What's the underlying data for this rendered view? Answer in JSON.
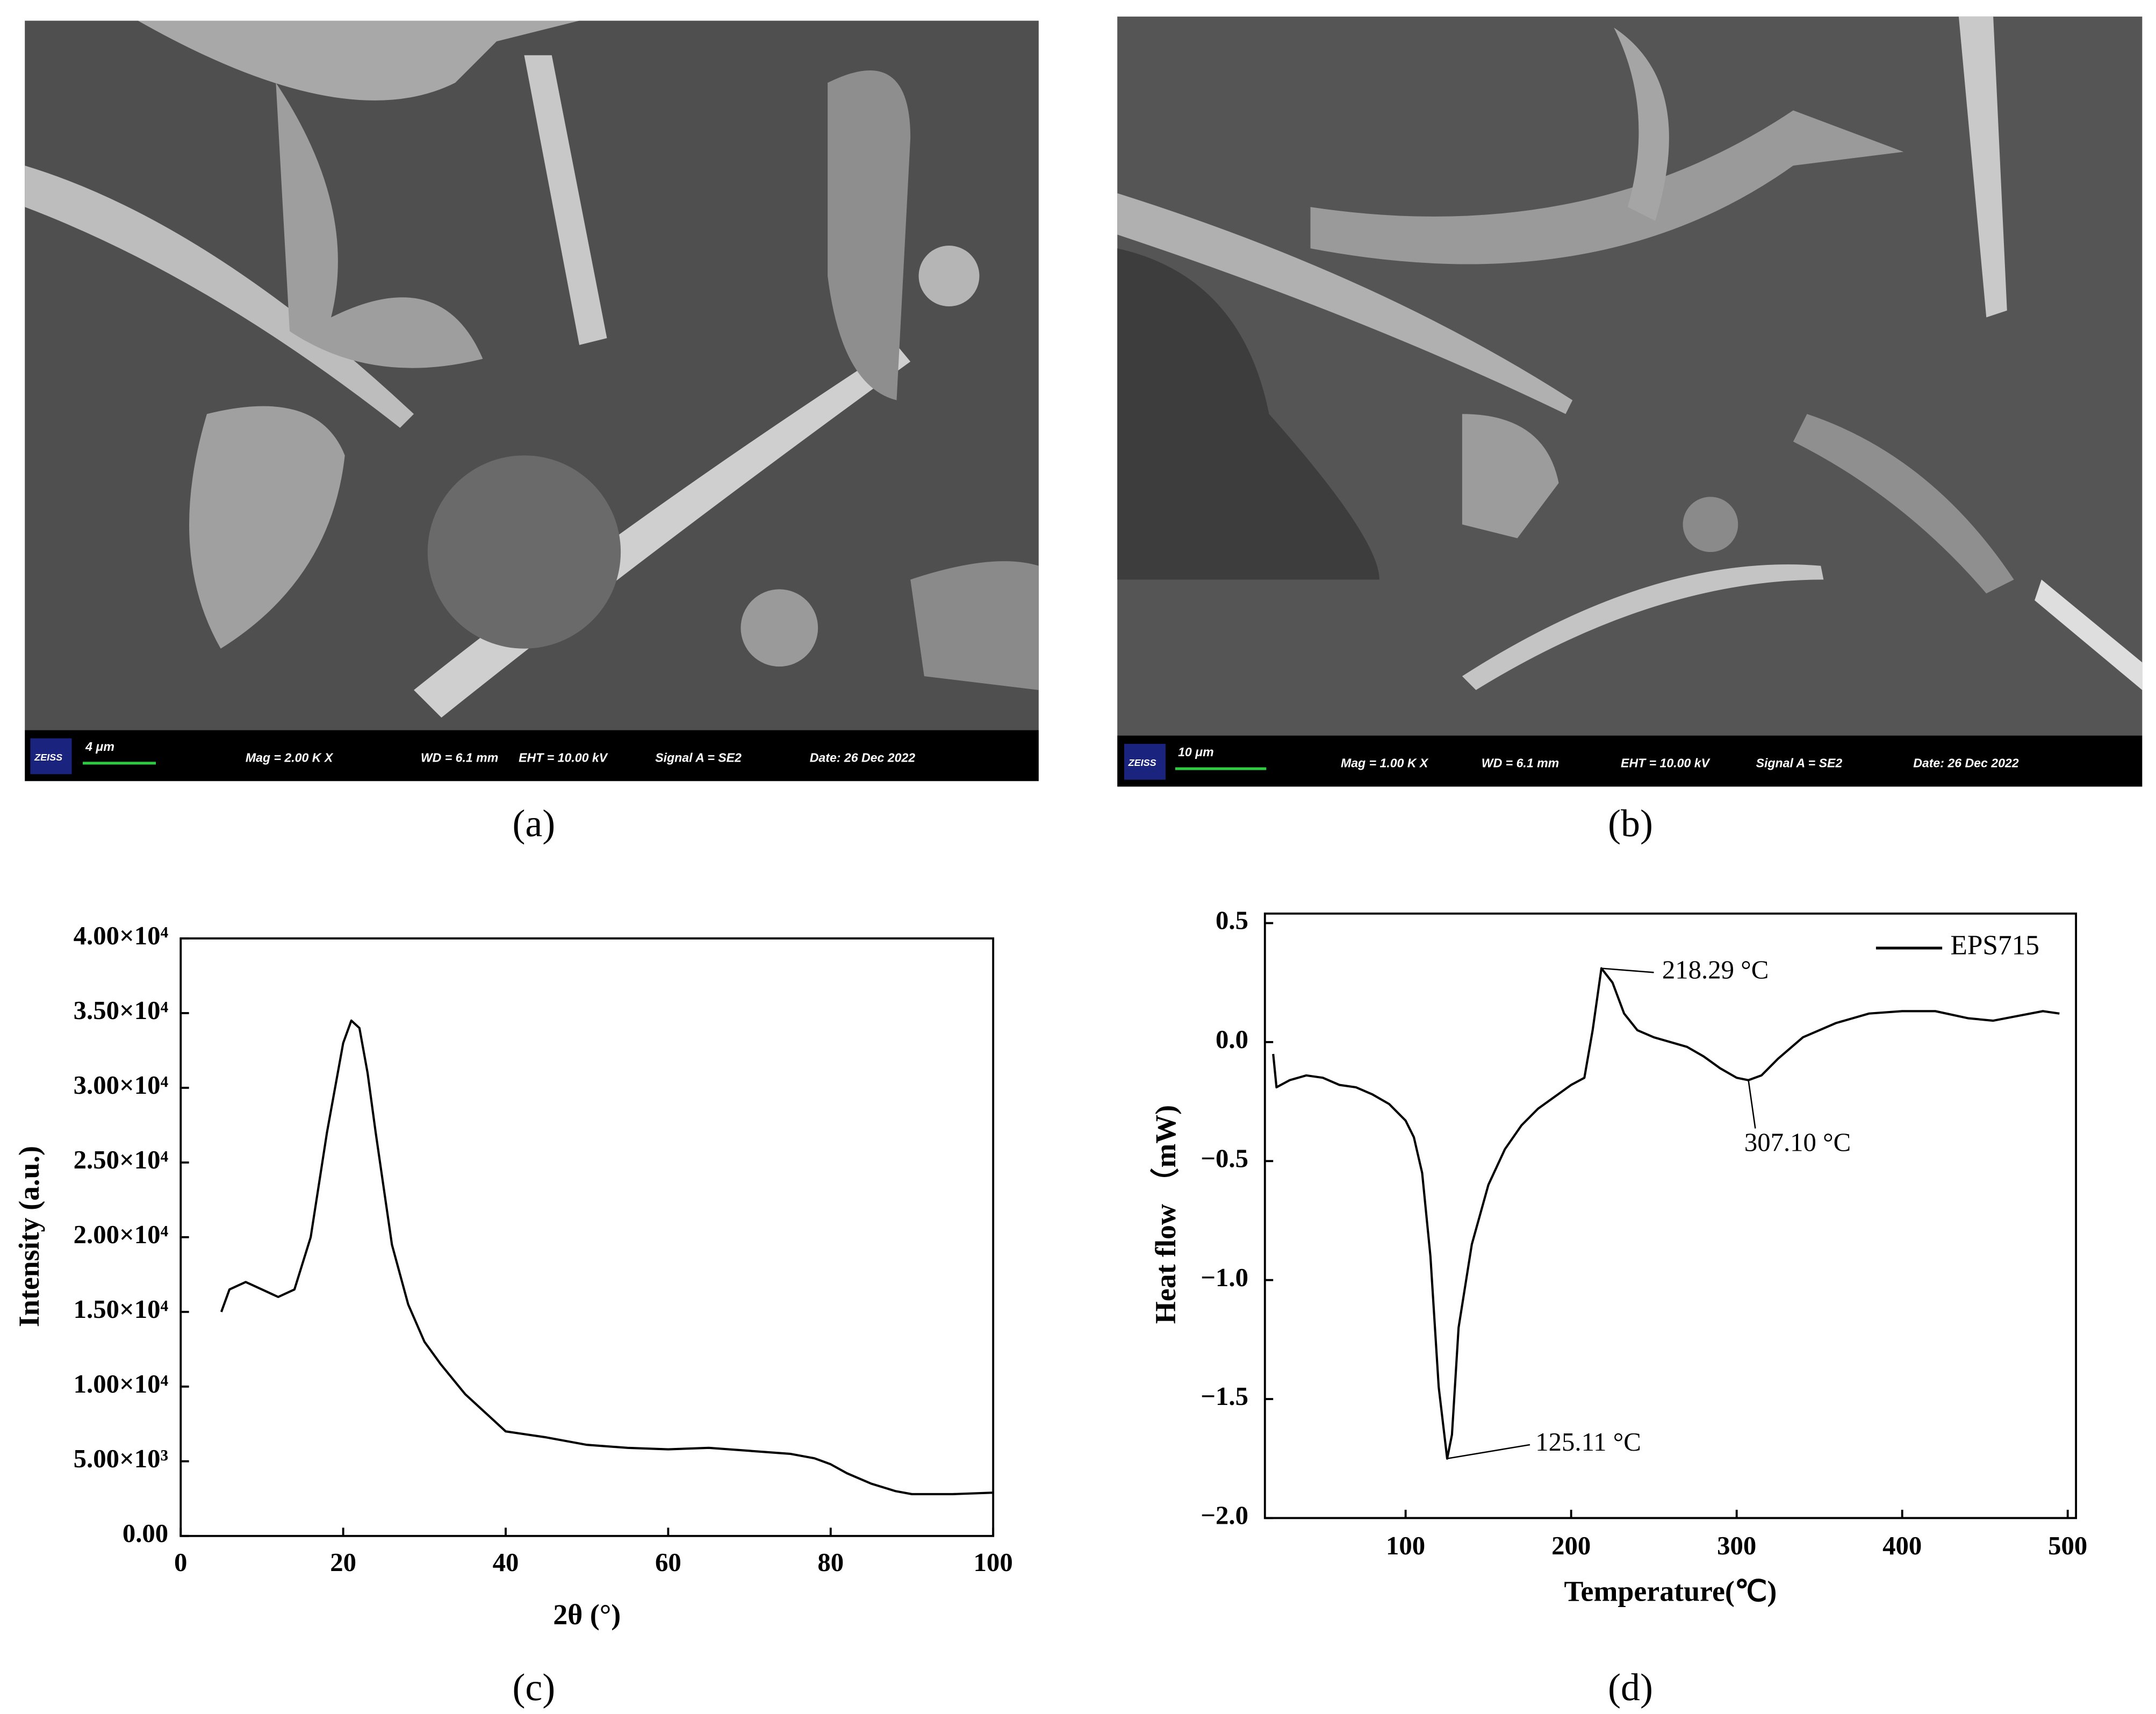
{
  "captions": [
    "(a)",
    "(b)",
    "(c)",
    "(d)"
  ],
  "sem_images": [
    {
      "logo": "ZEISS",
      "scale_bar": "4 μm",
      "mag": "Mag =   2.00 K X",
      "wd": "WD =  6.1 mm",
      "eht": "EHT = 10.00 kV",
      "signal": "Signal A = SE2",
      "date": "Date: 26 Dec 2022"
    },
    {
      "logo": "ZEISS",
      "scale_bar": "10 μm",
      "mag": "Mag =   1.00 K X",
      "wd": "WD =  6.1 mm",
      "eht": "EHT = 10.00 kV",
      "signal": "Signal A = SE2",
      "date": "Date: 26 Dec 2022"
    }
  ],
  "chart_data": [
    {
      "type": "line",
      "x_label": "2θ (°)",
      "y_label": "Intensity (a.u.)",
      "x": [
        5,
        6,
        8,
        10,
        12,
        14,
        16,
        18,
        20,
        21,
        22,
        23,
        24,
        26,
        28,
        30,
        32,
        35,
        38,
        40,
        45,
        50,
        55,
        60,
        65,
        70,
        75,
        78,
        80,
        82,
        85,
        88,
        90,
        95,
        100
      ],
      "values": [
        15000,
        16500,
        17000,
        16500,
        16000,
        16500,
        20000,
        27000,
        33000,
        34500,
        34000,
        31000,
        27000,
        19500,
        15500,
        13000,
        11500,
        9500,
        8000,
        7000,
        6600,
        6100,
        5900,
        5800,
        5900,
        5700,
        5500,
        5200,
        4800,
        4200,
        3500,
        3000,
        2800,
        2800,
        2900
      ],
      "color": "#000000",
      "xlim": [
        0,
        100
      ],
      "ylim": [
        0,
        40000
      ],
      "xticks": [
        0,
        20,
        40,
        60,
        80,
        100
      ],
      "yticks": [
        {
          "value": 0,
          "label": "0.00"
        },
        {
          "value": 5000,
          "label": "5.00×10³"
        },
        {
          "value": 10000,
          "label": "1.00×10⁴"
        },
        {
          "value": 15000,
          "label": "1.50×10⁴"
        },
        {
          "value": 20000,
          "label": "2.00×10⁴"
        },
        {
          "value": 25000,
          "label": "2.50×10⁴"
        },
        {
          "value": 30000,
          "label": "3.00×10⁴"
        },
        {
          "value": 35000,
          "label": "3.50×10⁴"
        },
        {
          "value": 40000,
          "label": "4.00×10⁴"
        }
      ]
    },
    {
      "type": "line",
      "x_label": "Temperature(℃)",
      "y_label": "Heat flow （mW)",
      "x": [
        20,
        22,
        30,
        40,
        50,
        60,
        70,
        80,
        90,
        100,
        105,
        110,
        115,
        120,
        125.11,
        128,
        132,
        140,
        150,
        160,
        170,
        180,
        190,
        200,
        208,
        213,
        218.29,
        225,
        232,
        240,
        250,
        260,
        270,
        280,
        290,
        300,
        307.1,
        315,
        325,
        340,
        360,
        380,
        400,
        420,
        440,
        455,
        470,
        485,
        495
      ],
      "series": [
        {
          "name": "EPS715",
          "color": "#000000",
          "values": [
            -0.05,
            -0.19,
            -0.16,
            -0.14,
            -0.15,
            -0.18,
            -0.19,
            -0.22,
            -0.26,
            -0.33,
            -0.4,
            -0.55,
            -0.9,
            -1.45,
            -1.75,
            -1.65,
            -1.2,
            -0.85,
            -0.6,
            -0.45,
            -0.35,
            -0.28,
            -0.23,
            -0.18,
            -0.15,
            0.05,
            0.31,
            0.25,
            0.12,
            0.05,
            0.02,
            0.0,
            -0.02,
            -0.06,
            -0.11,
            -0.15,
            -0.16,
            -0.14,
            -0.07,
            0.02,
            0.08,
            0.12,
            0.13,
            0.13,
            0.1,
            0.09,
            0.11,
            0.13,
            0.12
          ]
        }
      ],
      "legend": "upper right",
      "xlim": [
        15,
        505
      ],
      "ylim": [
        -2.0,
        0.54
      ],
      "xticks": [
        100,
        200,
        300,
        400,
        500
      ],
      "yticks": [
        0.5,
        {
          "value": 0,
          "label": "0.0"
        },
        {
          "value": -0.5,
          "label": "−0.5"
        },
        {
          "value": -1,
          "label": "−1.0"
        },
        {
          "value": -1.5,
          "label": "−1.5"
        },
        {
          "value": -2,
          "label": "−2.0"
        }
      ],
      "annotations": [
        {
          "text": "218.29 °C",
          "x": 218.29,
          "y": 0.31
        },
        {
          "text": "307.10 °C",
          "x": 307.1,
          "y": -0.16
        },
        {
          "text": "125.11 °C",
          "x": 125.11,
          "y": -1.75
        }
      ]
    }
  ]
}
